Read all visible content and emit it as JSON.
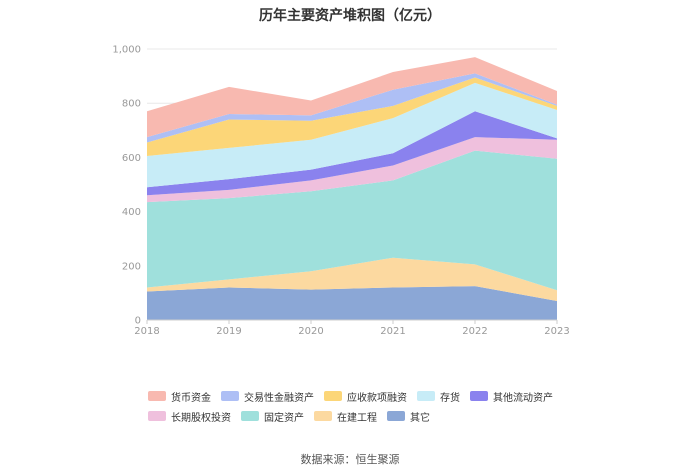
{
  "chart_data": {
    "type": "area",
    "stacked": true,
    "title": "历年主要资产堆积图（亿元）",
    "source": "数据来源：恒生聚源",
    "categories": [
      "2018",
      "2019",
      "2020",
      "2021",
      "2022",
      "2023"
    ],
    "ylim": [
      0,
      1000
    ],
    "yticks": [
      "0",
      "200",
      "400",
      "600",
      "800",
      "1,000"
    ],
    "grid": true,
    "legend_position": "bottom",
    "series": [
      {
        "name": "其它",
        "color": "#8ba7d6",
        "values": [
          105,
          120,
          112,
          120,
          125,
          70
        ]
      },
      {
        "name": "在建工程",
        "color": "#fcd9a0",
        "values": [
          15,
          30,
          68,
          110,
          80,
          40
        ]
      },
      {
        "name": "固定资产",
        "color": "#9fe0dc",
        "values": [
          315,
          300,
          295,
          285,
          420,
          485
        ]
      },
      {
        "name": "长期股权投资",
        "color": "#efc0dd",
        "values": [
          25,
          30,
          40,
          55,
          50,
          70
        ]
      },
      {
        "name": "其他流动资产",
        "color": "#8a82ee",
        "values": [
          30,
          40,
          40,
          45,
          95,
          5
        ]
      },
      {
        "name": "存货",
        "color": "#c7ecf7",
        "values": [
          115,
          115,
          110,
          130,
          105,
          105
        ]
      },
      {
        "name": "应收款项融资",
        "color": "#fcd678",
        "values": [
          50,
          105,
          70,
          45,
          20,
          15
        ]
      },
      {
        "name": "交易性金融资产",
        "color": "#aebff5",
        "values": [
          20,
          20,
          20,
          60,
          15,
          5
        ]
      },
      {
        "name": "货币资金",
        "color": "#f8b9b0",
        "values": [
          95,
          100,
          55,
          65,
          60,
          50
        ]
      }
    ],
    "legend_order": [
      "货币资金",
      "交易性金融资产",
      "应收款项融资",
      "存货",
      "其他流动资产",
      "长期股权投资",
      "固定资产",
      "在建工程",
      "其它"
    ]
  }
}
